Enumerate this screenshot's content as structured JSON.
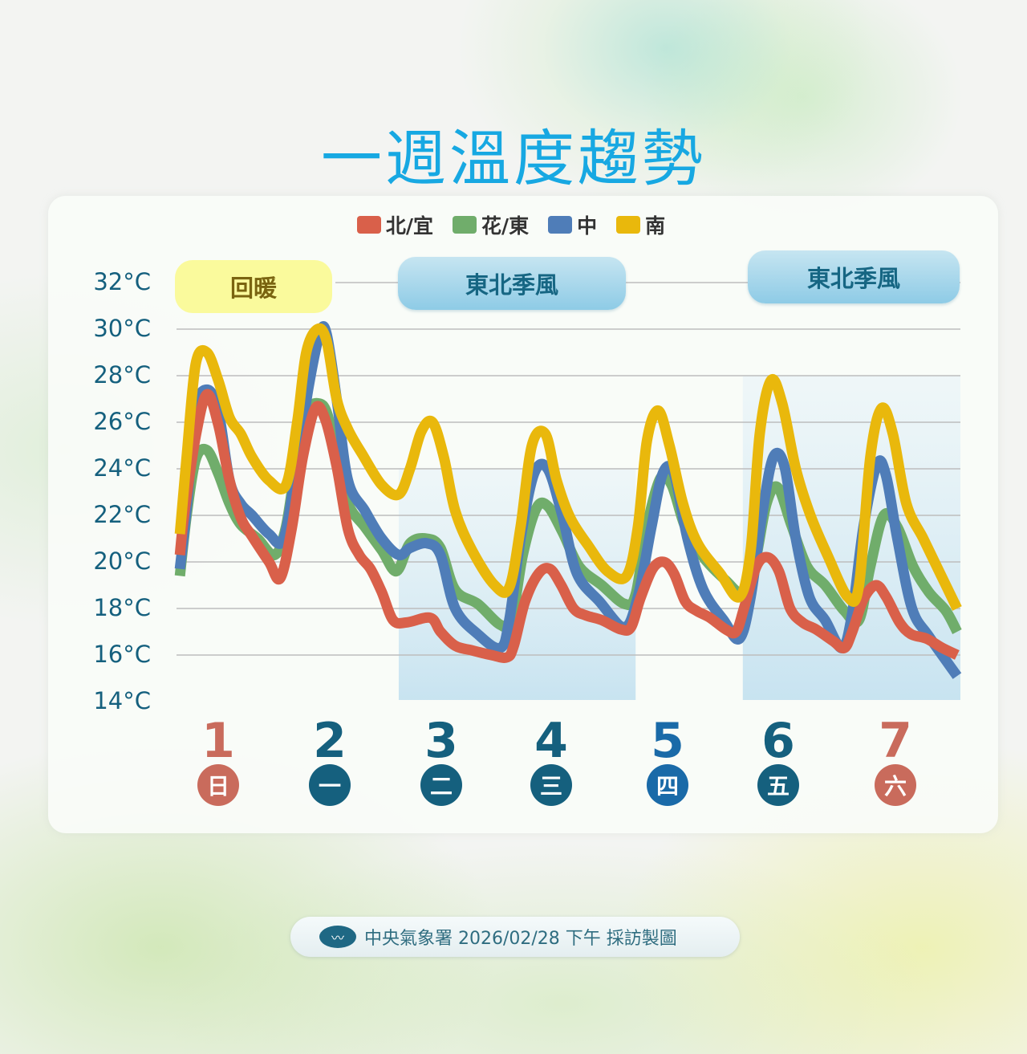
{
  "title": "一週溫度趨勢",
  "legend": [
    {
      "label": "北/宜",
      "color": "#d9604a"
    },
    {
      "label": "花/東",
      "color": "#70ad6b"
    },
    {
      "label": "中",
      "color": "#4f7db8"
    },
    {
      "label": "南",
      "color": "#e9b80c"
    }
  ],
  "banners": {
    "warm": "回暖",
    "monsoon_1": "東北季風",
    "monsoon_2": "東北季風"
  },
  "y_labels": [
    "32°C",
    "30°C",
    "28°C",
    "26°C",
    "24°C",
    "22°C",
    "20°C",
    "18°C",
    "16°C",
    "14°C"
  ],
  "days": [
    {
      "num": "1",
      "weekday": "日",
      "color": "#c96b5c"
    },
    {
      "num": "2",
      "weekday": "一",
      "color": "#15607e"
    },
    {
      "num": "3",
      "weekday": "二",
      "color": "#15607e"
    },
    {
      "num": "4",
      "weekday": "三",
      "color": "#15607e"
    },
    {
      "num": "5",
      "weekday": "四",
      "color": "#1a6aa8"
    },
    {
      "num": "6",
      "weekday": "五",
      "color": "#15607e"
    },
    {
      "num": "7",
      "weekday": "六",
      "color": "#c96b5c"
    }
  ],
  "footer": {
    "logo": "〰",
    "text": "中央氣象署 2026/02/28 下午 採訪製圖"
  },
  "chart_data": {
    "type": "line",
    "title": "一週溫度趨勢",
    "xlabel": "",
    "ylabel": "°C",
    "ylim": [
      14,
      32
    ],
    "yticks": [
      14,
      16,
      18,
      20,
      22,
      24,
      26,
      28,
      30,
      32
    ],
    "grid": true,
    "legend_position": "top",
    "categories": [
      "1 日",
      "2 一",
      "3 二",
      "4 三",
      "5 四",
      "6 五",
      "7 六"
    ],
    "day_x": [
      1,
      2,
      3,
      4,
      5,
      6,
      7
    ],
    "shaded_periods": [
      {
        "label": "東北季風",
        "from_day": 2.6,
        "to_day": 4.7
      },
      {
        "label": "東北季風",
        "from_day": 5.65,
        "to_day": 7.6
      }
    ],
    "annotations": [
      {
        "text": "回暖",
        "over_days": [
          1,
          2
        ]
      },
      {
        "text": "東北季風",
        "over_days": [
          3,
          4
        ]
      },
      {
        "text": "東北季風",
        "over_days": [
          6,
          7
        ]
      }
    ],
    "series": [
      {
        "name": "北/宜",
        "color": "#d9604a",
        "x": [
          0.66,
          0.7,
          0.8,
          0.9,
          1.0,
          1.1,
          1.2,
          1.3,
          1.45,
          1.55,
          1.65,
          1.75,
          1.86,
          1.95,
          2.05,
          2.15,
          2.25,
          2.35,
          2.45,
          2.55,
          2.67,
          2.88,
          2.97,
          3.1,
          3.25,
          3.42,
          3.56,
          3.62,
          3.72,
          3.84,
          3.94,
          4.04,
          4.15,
          4.26,
          4.4,
          4.57,
          4.66,
          4.74,
          4.85,
          4.95,
          5.04,
          5.14,
          5.24,
          5.36,
          5.5,
          5.59,
          5.66,
          5.77,
          5.87,
          5.97,
          6.07,
          6.18,
          6.3,
          6.45,
          6.55,
          6.62,
          6.72,
          6.83,
          6.92,
          7.04,
          7.14,
          7.28,
          7.42,
          7.55
        ],
        "values": [
          20.3,
          22.1,
          25.4,
          27.2,
          25.9,
          23.5,
          21.9,
          21.1,
          20.0,
          19.3,
          21.4,
          24.5,
          26.6,
          26.1,
          24.1,
          21.4,
          20.3,
          19.7,
          18.7,
          17.5,
          17.4,
          17.6,
          17.0,
          16.4,
          16.2,
          16.0,
          15.9,
          16.4,
          18.3,
          19.5,
          19.7,
          19.0,
          18.0,
          17.7,
          17.5,
          17.1,
          17.2,
          18.4,
          19.7,
          20.0,
          19.5,
          18.3,
          17.9,
          17.6,
          17.1,
          17.0,
          18.0,
          19.8,
          20.2,
          19.6,
          18.0,
          17.4,
          17.1,
          16.6,
          16.3,
          17.0,
          18.4,
          19.0,
          18.5,
          17.4,
          16.9,
          16.7,
          16.3,
          16.0
        ]
      },
      {
        "name": "花/東",
        "color": "#70ad6b",
        "x": [
          0.66,
          0.72,
          0.8,
          0.9,
          1.0,
          1.1,
          1.2,
          1.35,
          1.5,
          1.6,
          1.7,
          1.8,
          1.9,
          1.97,
          2.05,
          2.15,
          2.3,
          2.45,
          2.58,
          2.7,
          2.85,
          2.97,
          3.1,
          3.3,
          3.5,
          3.6,
          3.7,
          3.82,
          3.92,
          4.05,
          4.2,
          4.4,
          4.6,
          4.7,
          4.8,
          4.92,
          5.02,
          5.14,
          5.3,
          5.5,
          5.64,
          5.75,
          5.86,
          5.96,
          6.08,
          6.22,
          6.38,
          6.55,
          6.68,
          6.78,
          6.9,
          7.02,
          7.16,
          7.3,
          7.45,
          7.55
        ],
        "values": [
          19.4,
          22.0,
          24.4,
          24.8,
          23.8,
          22.5,
          21.6,
          21.0,
          20.3,
          21.5,
          24.5,
          26.5,
          26.8,
          26.3,
          24.5,
          22.5,
          21.5,
          20.5,
          19.6,
          20.8,
          21.0,
          20.6,
          18.8,
          18.2,
          17.3,
          17.5,
          20.3,
          22.3,
          22.4,
          21.3,
          19.8,
          19.0,
          18.2,
          18.6,
          21.5,
          23.6,
          23.3,
          21.5,
          20.2,
          19.2,
          18.7,
          19.8,
          22.5,
          23.2,
          21.6,
          19.8,
          19.0,
          17.9,
          17.5,
          19.8,
          22.0,
          21.5,
          19.8,
          18.7,
          17.9,
          17.0
        ]
      },
      {
        "name": "中",
        "color": "#4f7db8",
        "x": [
          0.66,
          0.72,
          0.8,
          0.9,
          1.0,
          1.1,
          1.2,
          1.3,
          1.45,
          1.58,
          1.7,
          1.8,
          1.9,
          1.96,
          2.05,
          2.15,
          2.3,
          2.45,
          2.6,
          2.7,
          2.85,
          2.97,
          3.1,
          3.3,
          3.5,
          3.58,
          3.68,
          3.8,
          3.92,
          4.05,
          4.18,
          4.38,
          4.6,
          4.72,
          4.84,
          4.94,
          5.04,
          5.16,
          5.3,
          5.48,
          5.62,
          5.72,
          5.82,
          5.92,
          6.02,
          6.12,
          6.24,
          6.38,
          6.53,
          6.62,
          6.72,
          6.84,
          6.92,
          7.02,
          7.15,
          7.3,
          7.55
        ],
        "values": [
          19.7,
          22.3,
          26.5,
          27.4,
          26.5,
          23.5,
          22.5,
          22.0,
          21.2,
          21.0,
          24.3,
          27.5,
          29.8,
          29.8,
          27.0,
          23.5,
          22.2,
          21.0,
          20.3,
          20.6,
          20.8,
          20.3,
          18.0,
          16.9,
          16.3,
          17.5,
          21.0,
          23.8,
          24.0,
          22.0,
          19.5,
          18.3,
          17.2,
          18.5,
          21.5,
          23.8,
          23.8,
          21.0,
          18.8,
          17.5,
          16.7,
          18.5,
          22.0,
          24.5,
          24.1,
          21.0,
          18.5,
          17.5,
          16.3,
          17.8,
          21.5,
          24.2,
          23.7,
          21.0,
          18.0,
          16.8,
          15.1
        ]
      },
      {
        "name": "南",
        "color": "#e9b80c",
        "x": [
          0.66,
          0.72,
          0.8,
          0.9,
          1.0,
          1.1,
          1.2,
          1.3,
          1.45,
          1.6,
          1.7,
          1.78,
          1.88,
          1.96,
          2.05,
          2.15,
          2.28,
          2.45,
          2.6,
          2.7,
          2.8,
          2.9,
          3.0,
          3.1,
          3.25,
          3.45,
          3.58,
          3.68,
          3.78,
          3.9,
          4.0,
          4.12,
          4.28,
          4.45,
          4.62,
          4.72,
          4.8,
          4.9,
          5.0,
          5.12,
          5.25,
          5.45,
          5.62,
          5.72,
          5.8,
          5.9,
          6.0,
          6.12,
          6.25,
          6.4,
          6.58,
          6.68,
          6.78,
          6.88,
          6.98,
          7.1,
          7.25,
          7.4,
          7.55
        ],
        "values": [
          21.2,
          24.5,
          28.5,
          29.0,
          27.8,
          26.2,
          25.5,
          24.5,
          23.5,
          23.3,
          26.0,
          29.0,
          30.0,
          29.5,
          27.0,
          25.7,
          24.6,
          23.3,
          22.9,
          24.0,
          25.6,
          26.0,
          24.5,
          22.2,
          20.5,
          19.0,
          18.9,
          21.5,
          25.0,
          25.5,
          23.5,
          21.9,
          20.7,
          19.6,
          19.4,
          21.5,
          25.2,
          26.5,
          25.0,
          22.5,
          20.8,
          19.5,
          18.5,
          20.5,
          25.5,
          27.8,
          26.8,
          24.0,
          22.0,
          20.3,
          18.5,
          19.0,
          24.5,
          26.6,
          25.5,
          22.5,
          21.0,
          19.5,
          18.0
        ]
      }
    ]
  }
}
